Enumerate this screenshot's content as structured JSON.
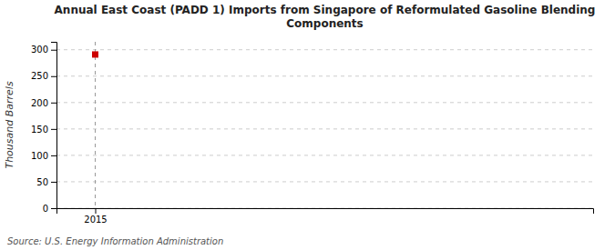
{
  "chart_data": {
    "type": "scatter",
    "title": "Annual East Coast (PADD 1) Imports from Singapore of Reformulated Gasoline Blending\nComponents",
    "y_label": "Thousand Barrels",
    "source": "Source: U.S. Energy Information Administration",
    "x": [
      2015
    ],
    "values": [
      291
    ],
    "color": "#cc0000",
    "marker": "square",
    "vline": 2015,
    "xlim": [
      2014.3,
      2024
    ],
    "xticks": [
      2015
    ],
    "ylim": [
      0,
      315
    ],
    "yticks": [
      0,
      50,
      100,
      150,
      200,
      250,
      300
    ],
    "grid": true
  }
}
